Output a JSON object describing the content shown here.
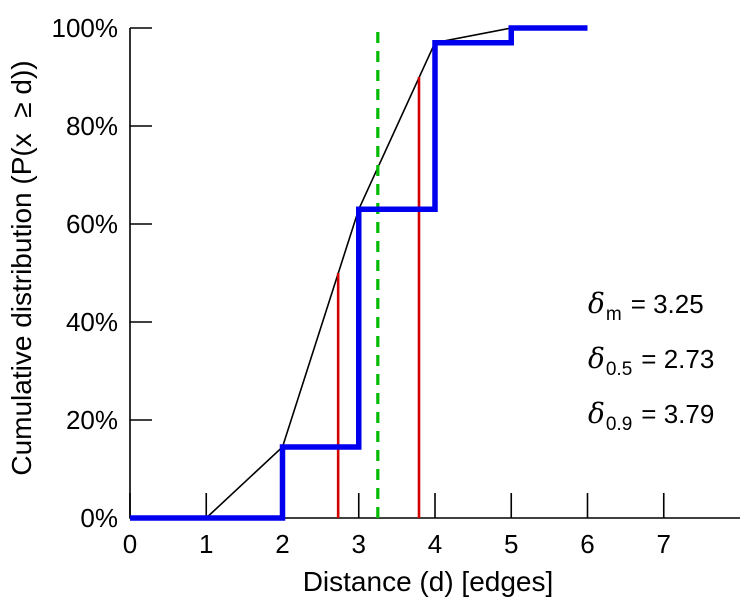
{
  "chart_data": {
    "type": "line",
    "title": "",
    "xlabel": "Distance (d) [edges]",
    "ylabel": "Cumulative distribution (P(x  ≥ d))",
    "xlim": [
      0,
      8
    ],
    "ylim": [
      0,
      100
    ],
    "grid": false,
    "legend": "none",
    "x_ticks": [
      0,
      1,
      2,
      3,
      4,
      5,
      6,
      7
    ],
    "x_tick_labels": [
      "0",
      "1",
      "2",
      "3",
      "4",
      "5",
      "6",
      "7"
    ],
    "y_ticks": [
      0,
      20,
      40,
      60,
      80,
      100
    ],
    "y_tick_labels": [
      "0%",
      "20%",
      "40%",
      "60%",
      "80%",
      "100%"
    ],
    "series": [
      {
        "name": "interpolated-cdf-line",
        "type": "line",
        "color": "#000000",
        "width": 1.6,
        "z": 1,
        "points": [
          [
            1,
            0
          ],
          [
            2,
            14.5
          ],
          [
            3,
            63
          ],
          [
            4,
            97
          ],
          [
            5,
            100
          ],
          [
            6,
            100
          ]
        ]
      },
      {
        "name": "empirical-cdf-step",
        "type": "step",
        "color": "#0000ee",
        "width": 5.5,
        "z": 3,
        "points": [
          [
            0,
            0
          ],
          [
            2,
            0
          ],
          [
            2,
            14.5
          ],
          [
            3,
            14.5
          ],
          [
            3,
            63
          ],
          [
            4,
            63
          ],
          [
            4,
            97
          ],
          [
            5,
            97
          ],
          [
            5,
            100
          ],
          [
            6,
            100
          ]
        ]
      }
    ],
    "vlines": [
      {
        "name": "mean-vline",
        "x": 3.25,
        "y0": 0,
        "y1": 100,
        "color": "#00bb00",
        "width": 3.2,
        "dash": "11,8",
        "z": 2
      },
      {
        "name": "median-vline",
        "x": 2.73,
        "y0": 0,
        "y1": 50,
        "color": "#d40000",
        "width": 2.6,
        "dash": null,
        "z": 2
      },
      {
        "name": "p90-vline",
        "x": 3.79,
        "y0": 0,
        "y1": 90,
        "color": "#d40000",
        "width": 2.6,
        "dash": null,
        "z": 2
      }
    ],
    "annotations": [
      {
        "symbol": "δ",
        "sub": "m",
        "rhs": "= 3.25"
      },
      {
        "symbol": "δ",
        "sub": "0.5",
        "rhs": "= 2.73"
      },
      {
        "symbol": "δ",
        "sub": "0.9",
        "rhs": "= 3.79"
      }
    ]
  }
}
